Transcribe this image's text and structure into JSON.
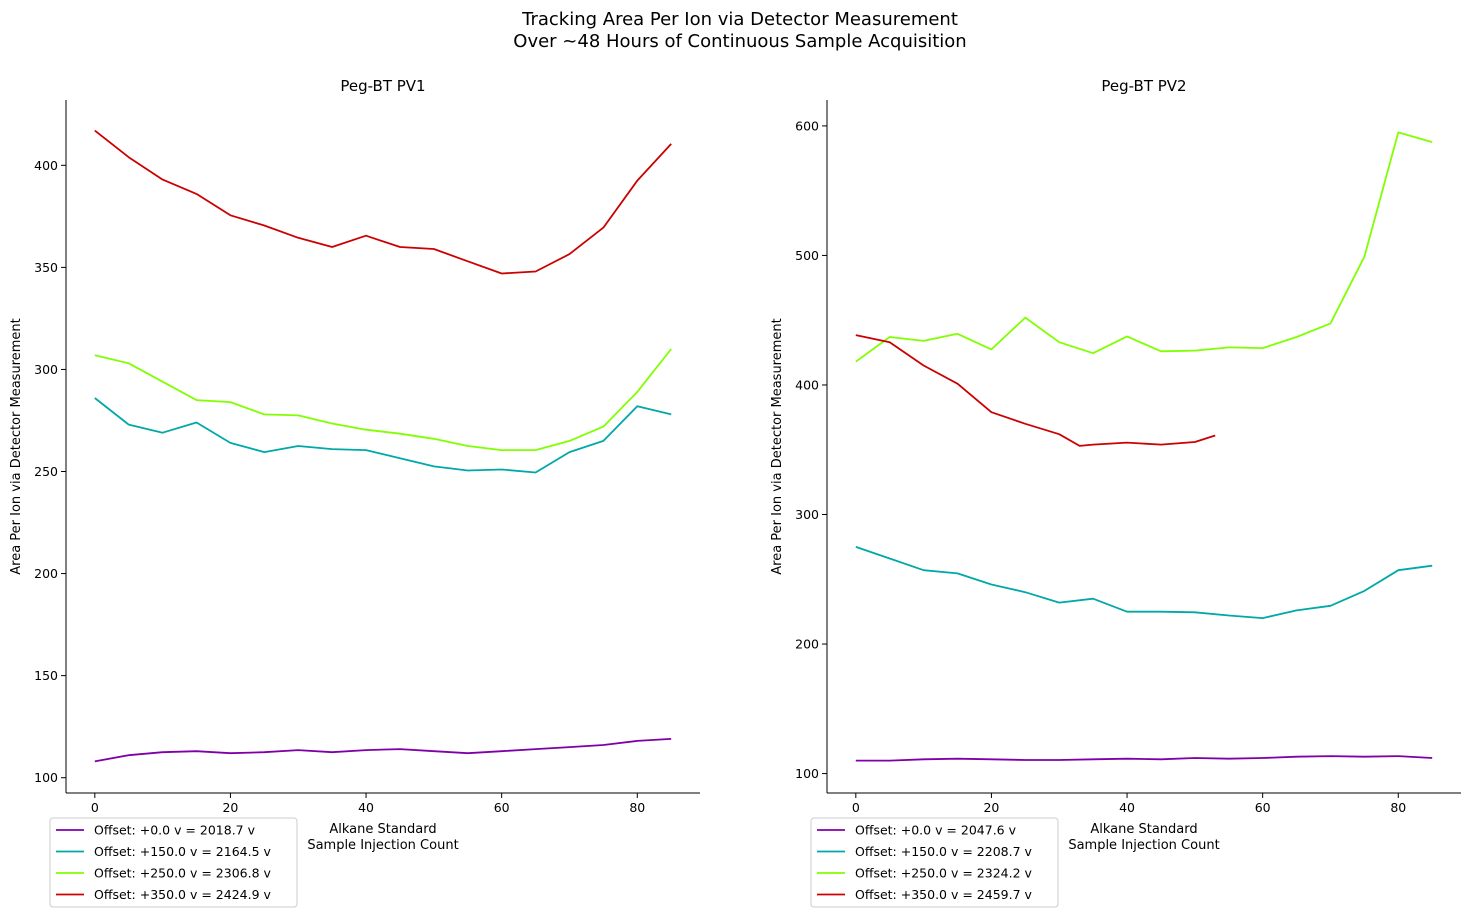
{
  "figure": {
    "suptitle_line1": "Tracking Area Per Ion via Detector Measurement",
    "suptitle_line2": "Over ~48 Hours of Continuous Sample Acquisition"
  },
  "chart_data": [
    {
      "type": "line",
      "title": "Peg-BT PV1",
      "xlabel_line1": "Alkane Standard",
      "xlabel_line2": "Sample Injection Count",
      "ylabel": "Area Per Ion via Detector Measurement",
      "xlim": [
        -4.25,
        89.25
      ],
      "ylim": [
        92.5,
        432
      ],
      "xticks": [
        0,
        20,
        40,
        60,
        80
      ],
      "yticks": [
        100,
        150,
        200,
        250,
        300,
        350,
        400
      ],
      "grid": false,
      "legend_position": "below-left",
      "series": [
        {
          "name": "Offset: +0.0 v = 2018.7 v",
          "color": "#7f00a8",
          "x": [
            0,
            5,
            10,
            15,
            20,
            25,
            30,
            35,
            40,
            45,
            50,
            55,
            60,
            65,
            70,
            75,
            80,
            85
          ],
          "y": [
            108,
            111,
            112.5,
            113,
            112,
            112.5,
            113.5,
            112.5,
            113.5,
            114,
            113,
            112,
            113,
            114,
            115,
            116,
            118,
            119
          ]
        },
        {
          "name": "Offset: +150.0 v = 2164.5 v",
          "color": "#00a8a8",
          "x": [
            0,
            5,
            10,
            15,
            20,
            25,
            30,
            35,
            40,
            45,
            50,
            55,
            60,
            65,
            70,
            75,
            80,
            85
          ],
          "y": [
            286,
            273,
            269,
            274,
            264,
            259.5,
            262.5,
            261,
            260.5,
            256.5,
            252.5,
            250.5,
            251,
            249.5,
            259.5,
            265,
            282,
            278
          ]
        },
        {
          "name": "Offset: +250.0 v = 2306.8 v",
          "color": "#80ff00",
          "x": [
            0,
            5,
            10,
            15,
            20,
            25,
            30,
            35,
            40,
            45,
            50,
            55,
            60,
            65,
            70,
            75,
            80,
            85
          ],
          "y": [
            307,
            303,
            294,
            285,
            284,
            278,
            277.5,
            273.5,
            270.5,
            268.5,
            266,
            262.5,
            260.5,
            260.5,
            265,
            272,
            289,
            310
          ]
        },
        {
          "name": "Offset: +350.0 v = 2424.9 v",
          "color": "#cc0000",
          "x": [
            0,
            5,
            10,
            15,
            20,
            25,
            30,
            35,
            40,
            45,
            50,
            55,
            60,
            65,
            70,
            75,
            80,
            85
          ],
          "y": [
            417,
            404,
            393,
            386,
            375.5,
            370.5,
            364.5,
            360,
            365.5,
            360,
            359,
            353,
            347,
            348,
            356.5,
            369.5,
            392.5,
            410.5
          ]
        }
      ]
    },
    {
      "type": "line",
      "title": "Peg-BT PV2",
      "xlabel_line1": "Alkane Standard",
      "xlabel_line2": "Sample Injection Count",
      "ylabel": "Area Per Ion via Detector Measurement",
      "xlim": [
        -4.25,
        89.25
      ],
      "ylim": [
        85,
        620
      ],
      "xticks": [
        0,
        20,
        40,
        60,
        80
      ],
      "yticks": [
        100,
        200,
        300,
        400,
        500,
        600
      ],
      "grid": false,
      "legend_position": "below-left",
      "series": [
        {
          "name": "Offset: +0.0 v = 2047.6 v",
          "color": "#7f00a8",
          "x": [
            0,
            5,
            10,
            15,
            20,
            25,
            30,
            35,
            40,
            45,
            50,
            55,
            60,
            65,
            70,
            75,
            80,
            85
          ],
          "y": [
            110,
            110,
            111,
            111.5,
            111,
            110.5,
            110.5,
            111,
            111.5,
            111,
            112,
            111.5,
            112,
            113,
            113.5,
            113,
            113.5,
            112
          ]
        },
        {
          "name": "Offset: +150.0 v = 2208.7 v",
          "color": "#00a8a8",
          "x": [
            0,
            5,
            10,
            15,
            20,
            25,
            30,
            35,
            40,
            45,
            50,
            55,
            60,
            65,
            70,
            75,
            80,
            85
          ],
          "y": [
            275,
            266,
            257,
            254.5,
            246,
            240,
            232,
            235,
            225,
            225,
            224.5,
            222,
            220,
            226,
            229.5,
            241,
            257,
            260.5
          ]
        },
        {
          "name": "Offset: +250.0 v = 2324.2 v",
          "color": "#80ff00",
          "x": [
            0,
            5,
            10,
            15,
            20,
            25,
            30,
            35,
            40,
            45,
            50,
            55,
            60,
            65,
            70,
            75,
            80,
            85
          ],
          "y": [
            418,
            437,
            434,
            439.5,
            427.5,
            452,
            433,
            424.5,
            437.5,
            426,
            426.5,
            429,
            428.5,
            437,
            447.5,
            499,
            595,
            587.5
          ]
        },
        {
          "name": "Offset: +350.0 v = 2459.7 v",
          "color": "#cc0000",
          "x": [
            0,
            5,
            10,
            15,
            20,
            25,
            30,
            33,
            35,
            40,
            45,
            50,
            53
          ],
          "y": [
            438.5,
            433,
            415,
            401,
            379,
            370,
            362,
            353,
            354,
            355.5,
            354,
            356,
            361
          ]
        }
      ]
    }
  ]
}
